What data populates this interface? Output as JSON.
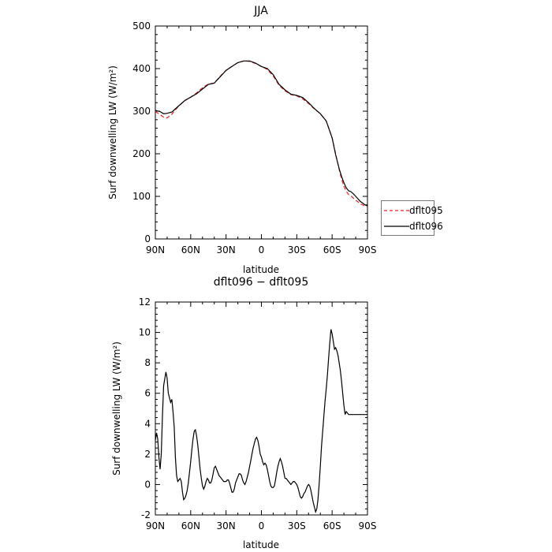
{
  "chart_data": [
    {
      "type": "line",
      "title": "JJA",
      "xlabel": "latitude",
      "ylabel": "Surf downwelling LW (W/m²)",
      "xlim": [
        90,
        -90
      ],
      "ylim": [
        0,
        500
      ],
      "xticks": [
        {
          "v": 90,
          "label": "90N"
        },
        {
          "v": 60,
          "label": "60N"
        },
        {
          "v": 30,
          "label": "30N"
        },
        {
          "v": 0,
          "label": "0"
        },
        {
          "v": -30,
          "label": "30S"
        },
        {
          "v": -60,
          "label": "60S"
        },
        {
          "v": -90,
          "label": "90S"
        }
      ],
      "yticks": [
        0,
        100,
        200,
        300,
        400,
        500
      ],
      "grid": false,
      "legend": "right",
      "series": [
        {
          "name": "dflt095",
          "color": "#e8221e",
          "dash": "dashed",
          "x": [
            90,
            86,
            83,
            80,
            76,
            70,
            65,
            60,
            55,
            50,
            45,
            40,
            35,
            30,
            25,
            20,
            15,
            10,
            5,
            0,
            -5,
            -10,
            -15,
            -20,
            -25,
            -30,
            -35,
            -40,
            -45,
            -50,
            -55,
            -60,
            -63,
            -66,
            -68,
            -70,
            -72,
            -74,
            -76,
            -78,
            -80,
            -82,
            -84,
            -86,
            -88,
            -90
          ],
          "y": [
            299,
            292,
            286,
            284,
            293,
            313,
            325,
            333,
            343,
            355,
            364,
            366,
            382,
            396,
            405,
            414,
            418,
            417,
            412,
            405,
            398,
            383,
            361,
            348,
            339,
            336,
            329,
            318,
            305,
            294,
            277,
            238,
            200,
            163,
            141,
            124,
            112,
            104,
            101,
            96,
            91,
            87,
            82,
            80,
            77,
            76
          ]
        },
        {
          "name": "dflt096",
          "color": "#000000",
          "dash": "solid",
          "x": [
            90,
            86,
            83,
            80,
            76,
            70,
            65,
            60,
            55,
            50,
            45,
            40,
            35,
            30,
            25,
            20,
            15,
            10,
            5,
            0,
            -5,
            -10,
            -15,
            -20,
            -25,
            -30,
            -35,
            -40,
            -45,
            -50,
            -55,
            -60,
            -63,
            -66,
            -68,
            -70,
            -72,
            -74,
            -76,
            -78,
            -80,
            -82,
            -84,
            -86,
            -88,
            -90
          ],
          "y": [
            302,
            299,
            294,
            295,
            298,
            313,
            325,
            333,
            341,
            352,
            363,
            366,
            381,
            396,
            405,
            414,
            418,
            418,
            413,
            405,
            400,
            386,
            363,
            350,
            340,
            337,
            332,
            320,
            306,
            294,
            277,
            237,
            198,
            165,
            147,
            132,
            120,
            113,
            111,
            106,
            100,
            94,
            88,
            84,
            80,
            78
          ]
        }
      ]
    },
    {
      "type": "line",
      "title": "dflt096 − dflt095",
      "xlabel": "latitude",
      "ylabel": "Surf downwelling LW (W/m²)",
      "xlim": [
        90,
        -90
      ],
      "ylim": [
        -2,
        12
      ],
      "xticks": [
        {
          "v": 90,
          "label": "90N"
        },
        {
          "v": 60,
          "label": "60N"
        },
        {
          "v": 30,
          "label": "30N"
        },
        {
          "v": 0,
          "label": "0"
        },
        {
          "v": -30,
          "label": "30S"
        },
        {
          "v": -60,
          "label": "60S"
        },
        {
          "v": -90,
          "label": "90S"
        }
      ],
      "yticks": [
        -2,
        0,
        2,
        4,
        6,
        8,
        10,
        12
      ],
      "grid": false,
      "series": [
        {
          "name": "",
          "color": "#000000",
          "dash": "solid",
          "x": [
            90,
            89,
            88,
            87,
            86,
            85,
            84,
            83,
            81,
            80,
            79,
            78,
            77,
            76,
            75,
            74,
            73,
            72,
            71,
            70,
            69,
            68,
            67,
            66,
            65,
            64,
            63,
            62,
            61,
            60,
            59,
            58,
            57,
            56,
            55,
            54,
            53,
            52,
            51,
            50,
            49,
            48,
            47,
            46,
            45,
            44,
            43,
            42,
            41,
            40,
            39,
            38,
            37,
            36,
            35,
            34,
            33,
            32,
            31,
            30,
            29,
            28,
            27,
            26,
            25,
            24,
            23,
            22,
            21,
            20,
            19,
            18,
            17,
            16,
            15,
            14,
            13,
            12,
            11,
            10,
            9,
            8,
            7,
            6,
            5,
            4,
            3,
            2,
            1,
            0,
            -1,
            -2,
            -3,
            -4,
            -5,
            -6,
            -7,
            -8,
            -9,
            -10,
            -11,
            -12,
            -13,
            -14,
            -15,
            -16,
            -17,
            -18,
            -19,
            -20,
            -21,
            -22,
            -23,
            -24,
            -25,
            -26,
            -27,
            -28,
            -29,
            -30,
            -31,
            -32,
            -33,
            -34,
            -35,
            -36,
            -37,
            -38,
            -39,
            -40,
            -41,
            -42,
            -43,
            -44,
            -45,
            -46,
            -47,
            -48,
            -49,
            -50,
            -51,
            -52,
            -53,
            -54,
            -55,
            -56,
            -57,
            -58,
            -59,
            -60,
            -61,
            -62,
            -63,
            -64,
            -65,
            -66,
            -67,
            -68,
            -69,
            -70,
            -71,
            -72,
            -73,
            -74,
            -75,
            -76,
            -77,
            -78,
            -79,
            -80,
            -81,
            -82,
            -83,
            -84,
            -85,
            -86,
            -87,
            -88,
            -89,
            -90
          ],
          "y": [
            2.9,
            3.4,
            3.0,
            1.8,
            1.0,
            2.0,
            4.5,
            6.5,
            7.4,
            7.0,
            6.0,
            5.7,
            5.4,
            5.6,
            4.8,
            3.8,
            1.8,
            0.6,
            0.2,
            0.3,
            0.4,
            0.2,
            -0.5,
            -1.0,
            -0.9,
            -0.7,
            -0.4,
            0.1,
            0.8,
            1.5,
            2.3,
            3.0,
            3.5,
            3.6,
            3.2,
            2.6,
            1.8,
            1.0,
            0.4,
            -0.1,
            -0.3,
            -0.1,
            0.2,
            0.4,
            0.3,
            0.1,
            0.1,
            0.3,
            0.7,
            1.1,
            1.2,
            1.0,
            0.8,
            0.6,
            0.5,
            0.4,
            0.3,
            0.2,
            0.2,
            0.2,
            0.3,
            0.3,
            0.1,
            -0.2,
            -0.5,
            -0.5,
            -0.3,
            0.1,
            0.3,
            0.5,
            0.7,
            0.7,
            0.6,
            0.3,
            0.1,
            0.0,
            0.2,
            0.5,
            0.8,
            1.2,
            1.6,
            2.0,
            2.4,
            2.7,
            3.0,
            3.1,
            2.9,
            2.5,
            2.0,
            1.8,
            1.5,
            1.3,
            1.4,
            1.3,
            1.0,
            0.6,
            0.2,
            -0.1,
            -0.2,
            -0.2,
            -0.1,
            0.3,
            0.8,
            1.2,
            1.5,
            1.7,
            1.5,
            1.2,
            0.8,
            0.4,
            0.4,
            0.3,
            0.2,
            0.1,
            0.0,
            0.1,
            0.2,
            0.2,
            0.1,
            0.0,
            -0.2,
            -0.5,
            -0.8,
            -0.9,
            -0.8,
            -0.6,
            -0.5,
            -0.3,
            -0.1,
            0.0,
            -0.1,
            -0.4,
            -0.8,
            -1.2,
            -1.5,
            -1.8,
            -1.6,
            -1.0,
            0.0,
            1.2,
            2.5,
            3.5,
            4.5,
            5.5,
            6.3,
            7.2,
            8.3,
            9.3,
            10.2,
            9.9,
            9.4,
            8.9,
            9.0,
            8.8,
            8.5,
            8.0,
            7.5,
            6.8,
            6.0,
            5.2,
            4.6,
            4.8,
            4.7,
            4.6,
            4.6,
            4.6,
            4.6,
            4.6,
            4.6,
            4.6,
            4.6,
            4.6,
            4.6,
            4.6,
            4.6,
            4.6,
            4.6,
            4.6,
            4.6,
            4.6
          ]
        }
      ]
    }
  ]
}
